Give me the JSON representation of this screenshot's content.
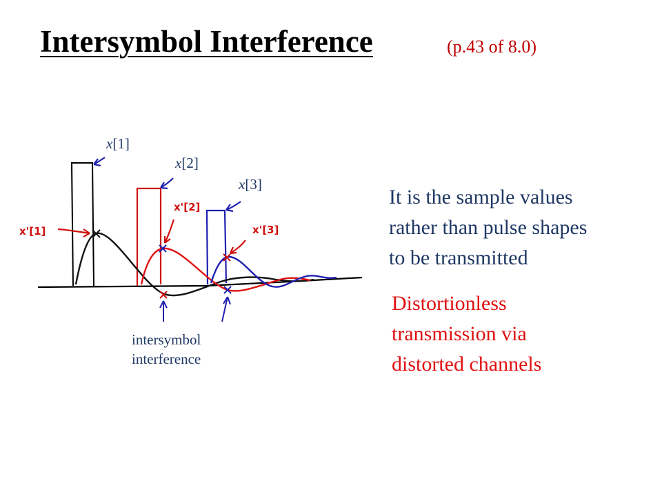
{
  "slide": {
    "title": "Intersymbol Interference",
    "subtitle": "(p.43 of 8.0)"
  },
  "diagram": {
    "labels": {
      "x1": {
        "var": "x",
        "idx": "[1]"
      },
      "x2": {
        "var": "x",
        "idx": "[2]"
      },
      "x3": {
        "var": "x",
        "idx": "[3]"
      },
      "xp1": "x'[1]",
      "xp2": "x'[2]",
      "xp3": "x'[3]"
    },
    "isi_label": {
      "line1": "intersymbol",
      "line2": "interference"
    },
    "colors": {
      "pulse1": "#000000",
      "pulse2": "#e01010",
      "pulse3": "#2020b0",
      "label": "#1f3864"
    }
  },
  "text": {
    "blue_lines": [
      "It is the sample values",
      "rather than pulse shapes",
      "to be transmitted"
    ],
    "red_lines": [
      "Distortionless",
      "transmission via",
      "distorted channels"
    ]
  }
}
